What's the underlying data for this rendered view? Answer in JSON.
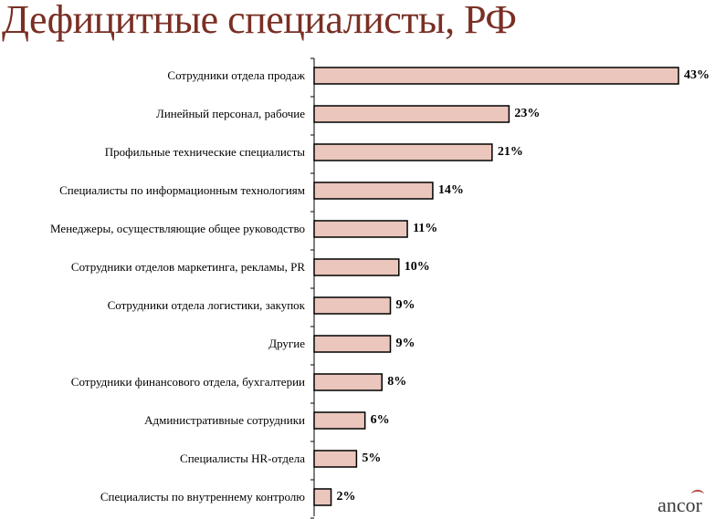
{
  "title": "Дефицитные специалисты, РФ",
  "logo": "ancor",
  "colors": {
    "bar_fill": "#ebc6bc",
    "bar_stroke": "#000000",
    "title": "#7a2f24"
  },
  "chart_data": {
    "type": "bar",
    "orientation": "horizontal",
    "categories": [
      "Сотрудники отдела продаж",
      "Линейный персонал, рабочие",
      "Профильные технические специалисты",
      "Специалисты по информационным технологиям",
      "Менеджеры, осуществляющие общее руководство",
      "Сотрудники отделов маркетинга, рекламы, PR",
      "Сотрудники отдела логистики, закупок",
      "Другие",
      "Сотрудники финансового отдела, бухгалтерии",
      "Административные сотрудники",
      "Специалисты HR-отдела",
      "Специалисты по внутреннему контролю"
    ],
    "values": [
      43,
      23,
      21,
      14,
      11,
      10,
      9,
      9,
      8,
      6,
      5,
      2
    ],
    "value_labels": [
      "43%",
      "23%",
      "21%",
      "14%",
      "11%",
      "10%",
      "9%",
      "9%",
      "8%",
      "6%",
      "5%",
      "2%"
    ],
    "xlim": [
      0,
      43
    ],
    "grid": false,
    "legend": "none"
  }
}
